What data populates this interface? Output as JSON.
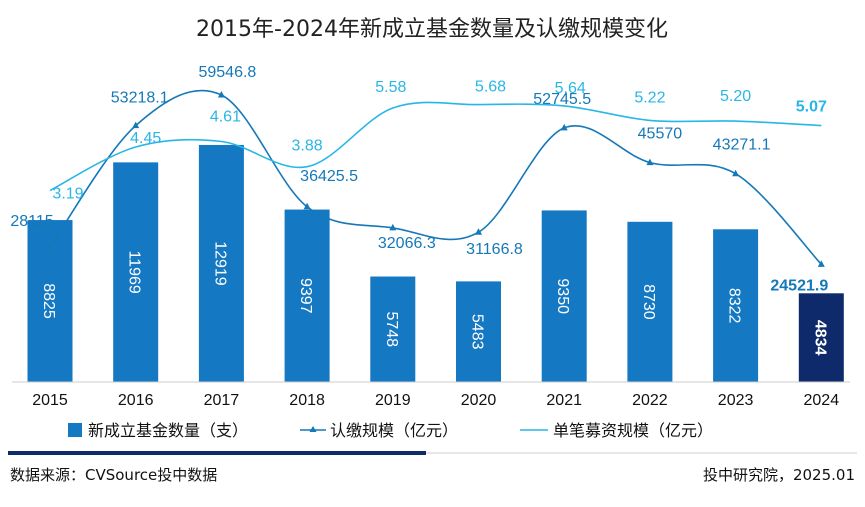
{
  "chart_data": {
    "type": "bar",
    "title": "2015年-2024年新成立基金数量及认缴规模变化",
    "categories": [
      "2015",
      "2016",
      "2017",
      "2018",
      "2019",
      "2020",
      "2021",
      "2022",
      "2023",
      "2024"
    ],
    "series": [
      {
        "name": "新成立基金数量（支）",
        "type": "bar",
        "color": "#1578c2",
        "highlight_color": "#0e2a6b",
        "values": [
          8825,
          11969,
          12919,
          9397,
          5748,
          5483,
          9350,
          8730,
          8322,
          4834
        ]
      },
      {
        "name": "认缴规模（亿元）",
        "type": "line",
        "color": "#1578b8",
        "values": [
          28115,
          53218.1,
          59546.8,
          36425.5,
          32066.3,
          31166.8,
          52745.5,
          45570,
          43271.1,
          24521.9
        ],
        "labels": [
          "28115",
          "53218.1",
          "59546.8",
          "36425.5",
          "32066.3",
          "31166.8",
          "52745.5",
          "45570",
          "43271.1",
          "24521.9"
        ]
      },
      {
        "name": "单笔募资规模（亿元）",
        "type": "line",
        "color": "#29b6e6",
        "values": [
          3.19,
          4.45,
          4.61,
          3.88,
          5.58,
          5.68,
          5.64,
          5.22,
          5.2,
          5.07
        ],
        "labels": [
          "3.19",
          "4.45",
          "4.61",
          "3.88",
          "5.58",
          "5.68",
          "5.64",
          "5.22",
          "5.20",
          "5.07"
        ]
      }
    ],
    "legend_position": "bottom",
    "grid": false
  },
  "footer": {
    "source": "数据来源：CVSource投中数据",
    "credit": "投中研究院，2025.01"
  }
}
